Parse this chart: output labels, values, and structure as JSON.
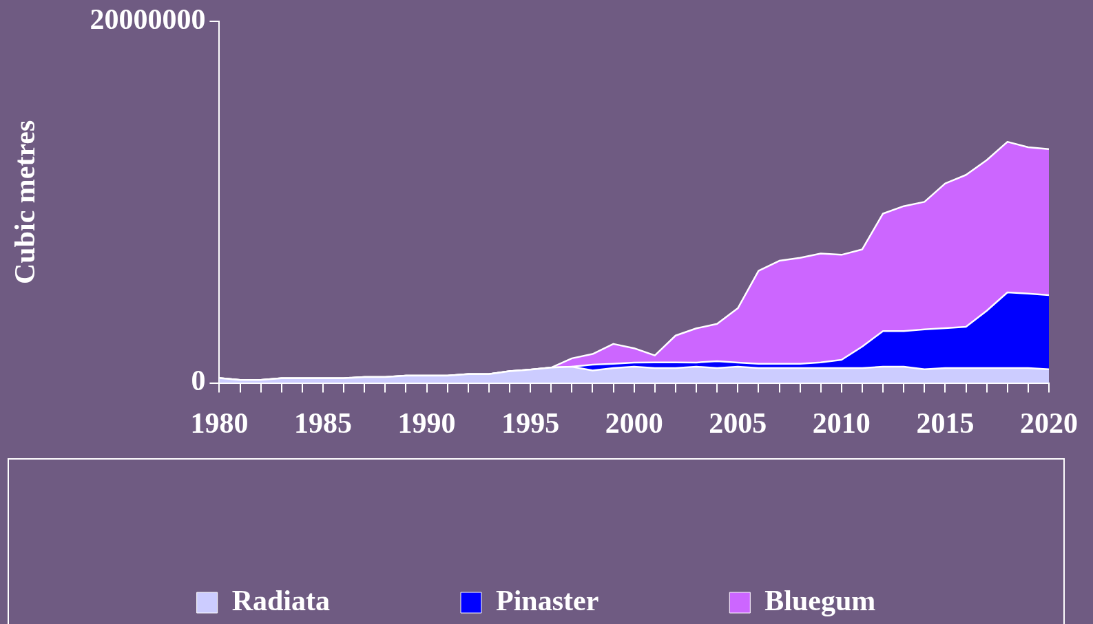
{
  "chart_data": {
    "type": "area",
    "stacked": true,
    "ylabel": "Cubic metres",
    "x": [
      1980,
      1981,
      1982,
      1983,
      1984,
      1985,
      1986,
      1987,
      1988,
      1989,
      1990,
      1991,
      1992,
      1993,
      1994,
      1995,
      1996,
      1997,
      1998,
      1999,
      2000,
      2001,
      2002,
      2003,
      2004,
      2005,
      2006,
      2007,
      2008,
      2009,
      2010,
      2011,
      2012,
      2013,
      2014,
      2015,
      2016,
      2017,
      2018,
      2019,
      2020
    ],
    "series": [
      {
        "name": "Radiata",
        "color": "#ccccff",
        "values": [
          270000,
          170000,
          170000,
          260000,
          260000,
          260000,
          260000,
          330000,
          330000,
          400000,
          400000,
          400000,
          490000,
          490000,
          650000,
          740000,
          850000,
          900000,
          690000,
          820000,
          900000,
          820000,
          820000,
          900000,
          820000,
          900000,
          820000,
          820000,
          820000,
          820000,
          820000,
          820000,
          900000,
          900000,
          760000,
          820000,
          820000,
          820000,
          820000,
          820000,
          760000
        ]
      },
      {
        "name": "Pinaster",
        "color": "#0000ff",
        "values": [
          0,
          0,
          0,
          0,
          0,
          0,
          0,
          0,
          0,
          0,
          0,
          0,
          0,
          0,
          0,
          0,
          0,
          0,
          320000,
          240000,
          230000,
          320000,
          320000,
          230000,
          380000,
          230000,
          240000,
          240000,
          240000,
          320000,
          460000,
          1190000,
          1970000,
          1970000,
          2200000,
          2210000,
          2290000,
          3170000,
          4190000,
          4120000,
          4100000
        ]
      },
      {
        "name": "Bluegum",
        "color": "#cc66ff",
        "values": [
          0,
          0,
          0,
          0,
          0,
          0,
          0,
          0,
          0,
          0,
          0,
          0,
          0,
          0,
          0,
          0,
          0,
          460000,
          590000,
          1100000,
          790000,
          380000,
          1480000,
          1890000,
          2070000,
          3000000,
          5140000,
          5700000,
          5860000,
          6020000,
          5810000,
          5380000,
          6500000,
          6910000,
          7060000,
          8010000,
          8400000,
          8340000,
          8330000,
          8100000,
          8080000
        ]
      }
    ],
    "xlim": [
      1980,
      2020
    ],
    "xticks": [
      1980,
      {
        "value": 1981,
        "label": null
      },
      {
        "value": 1982,
        "label": null
      },
      {
        "value": 1983,
        "label": null
      },
      {
        "value": 1984,
        "label": null
      },
      1985,
      {
        "value": 1986,
        "label": null
      },
      {
        "value": 1987,
        "label": null
      },
      {
        "value": 1988,
        "label": null
      },
      {
        "value": 1989,
        "label": null
      },
      1990,
      {
        "value": 1991,
        "label": null
      },
      {
        "value": 1992,
        "label": null
      },
      {
        "value": 1993,
        "label": null
      },
      {
        "value": 1994,
        "label": null
      },
      1995,
      {
        "value": 1996,
        "label": null
      },
      {
        "value": 1997,
        "label": null
      },
      {
        "value": 1998,
        "label": null
      },
      {
        "value": 1999,
        "label": null
      },
      2000,
      {
        "value": 2001,
        "label": null
      },
      {
        "value": 2002,
        "label": null
      },
      {
        "value": 2003,
        "label": null
      },
      {
        "value": 2004,
        "label": null
      },
      2005,
      {
        "value": 2006,
        "label": null
      },
      {
        "value": 2007,
        "label": null
      },
      {
        "value": 2008,
        "label": null
      },
      {
        "value": 2009,
        "label": null
      },
      2010,
      {
        "value": 2011,
        "label": null
      },
      {
        "value": 2012,
        "label": null
      },
      {
        "value": 2013,
        "label": null
      },
      {
        "value": 2014,
        "label": null
      },
      2015,
      {
        "value": 2016,
        "label": null
      },
      {
        "value": 2017,
        "label": null
      },
      {
        "value": 2018,
        "label": null
      },
      {
        "value": 2019,
        "label": null
      },
      2020
    ],
    "ylim": [
      0,
      20000000
    ],
    "yticks": [
      0,
      20000000
    ],
    "grid": false,
    "legend": "bottom",
    "marker": "none",
    "line_style": "solid"
  }
}
